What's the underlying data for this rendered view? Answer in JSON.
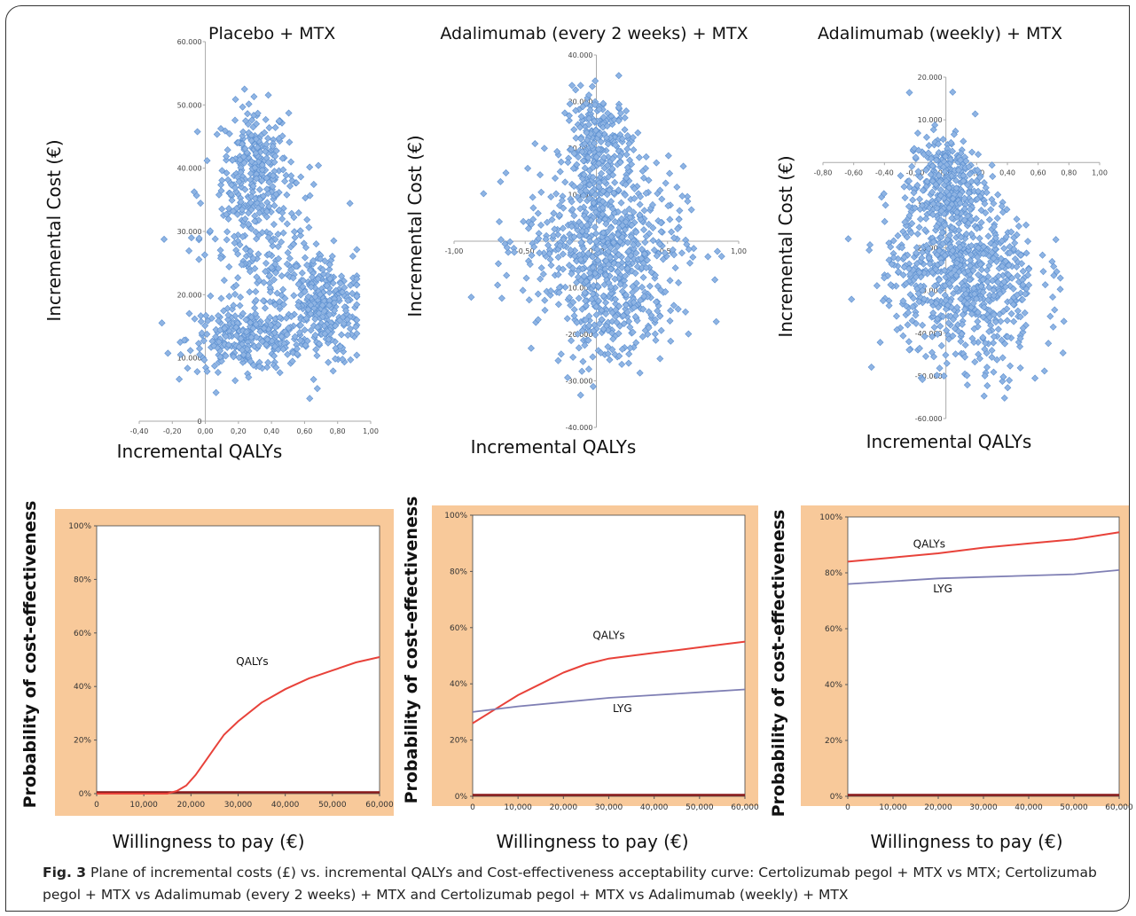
{
  "caption": {
    "label": "Fig. 3",
    "text": "Plane of incremental costs (£) vs. incremental QALYs and Cost-effectiveness acceptability curve: Certolizumab pegol + MTX vs MTX; Certolizumab pegol + MTX vs Adalimumab (every 2 weeks) + MTX and Certolizumab pegol + MTX vs Adalimumab (weekly) + MTX"
  },
  "colors": {
    "point": "#8fb4e3",
    "point_edge": "#5b8fd0",
    "qaly_line": "#e8423a",
    "lyg_line": "#7f7fb4",
    "panel_bg": "#f8c99a",
    "base_line": "#8b1a1a"
  },
  "chart_data": [
    {
      "type": "scatter",
      "title": "Placebo + MTX",
      "xlabel": "Incremental QALYs",
      "ylabel": "Incremental Cost (€)",
      "xlim": [
        -0.4,
        1.0
      ],
      "ylim": [
        0,
        60000
      ],
      "xticks": [
        "-0,40",
        "-0,20",
        "0,00",
        "0,20",
        "0,40",
        "0,60",
        "0,80",
        "1,00"
      ],
      "yticks": [
        "0",
        "10.000",
        "20.000",
        "30.000",
        "40.000",
        "50.000",
        "60.000"
      ],
      "points_summary": "approx. 1000 PSA simulations",
      "clusters": [
        {
          "cx": 0.3,
          "cy": 40000,
          "sx": 0.1,
          "sy": 5000,
          "n": 260
        },
        {
          "cx": 0.25,
          "cy": 13000,
          "sx": 0.18,
          "sy": 2500,
          "n": 260
        },
        {
          "cx": 0.7,
          "cy": 18000,
          "sx": 0.12,
          "sy": 4500,
          "n": 280
        },
        {
          "cx": 0.35,
          "cy": 26000,
          "sx": 0.2,
          "sy": 7000,
          "n": 200
        }
      ]
    },
    {
      "type": "scatter",
      "title": "Adalimumab (every 2 weeks) + MTX",
      "xlabel": "Incremental QALYs",
      "ylabel": "Incremental Cost (€)",
      "xlim": [
        -1.0,
        1.0
      ],
      "ylim": [
        -40000,
        40000
      ],
      "xticks": [
        "-1,00",
        "-0,50",
        "0,00",
        "0,50",
        "1,00"
      ],
      "yticks": [
        "-40.000",
        "-30.000",
        "-20.000",
        "-10.000",
        "0",
        "10.000",
        "20.000",
        "30.000",
        "40.000"
      ],
      "clusters": [
        {
          "cx": 0.02,
          "cy": 20000,
          "sx": 0.12,
          "sy": 6000,
          "n": 250
        },
        {
          "cx": 0.05,
          "cy": 0,
          "sx": 0.28,
          "sy": 8000,
          "n": 550
        },
        {
          "cx": 0.1,
          "cy": -15000,
          "sx": 0.2,
          "sy": 6000,
          "n": 200
        }
      ]
    },
    {
      "type": "scatter",
      "title": "Adalimumab (weekly) + MTX",
      "xlabel": "Incremental QALYs",
      "ylabel": "Incremental Cost (€)",
      "xlim": [
        -0.8,
        1.0
      ],
      "ylim": [
        -60000,
        20000
      ],
      "xticks": [
        "-0,80",
        "-0,60",
        "-0,40",
        "-0,20",
        "0,00",
        "0,20",
        "0,40",
        "0,60",
        "0,80",
        "1,00"
      ],
      "yticks": [
        "-60.000",
        "-50.000",
        "-40.000",
        "-30.000",
        "-20.000",
        "-10.000",
        "0",
        "10.000",
        "20.000"
      ],
      "clusters": [
        {
          "cx": 0.0,
          "cy": -5000,
          "sx": 0.12,
          "sy": 6000,
          "n": 300
        },
        {
          "cx": 0.1,
          "cy": -25000,
          "sx": 0.25,
          "sy": 8000,
          "n": 600
        },
        {
          "cx": 0.2,
          "cy": -40000,
          "sx": 0.25,
          "sy": 7000,
          "n": 120
        }
      ]
    },
    {
      "type": "line",
      "ylabel": "Probability of cost-effectiveness",
      "xlabel": "Willingness to pay (€)",
      "xlim": [
        0,
        60000
      ],
      "ylim": [
        0,
        1
      ],
      "xticks": [
        "0",
        "10,000",
        "20,000",
        "30,000",
        "40,000",
        "50,000",
        "60,000"
      ],
      "yticks": [
        "0%",
        "20%",
        "40%",
        "60%",
        "80%",
        "100%"
      ],
      "series": [
        {
          "name": "QALYs",
          "x": [
            0,
            15000,
            17000,
            19000,
            21000,
            23000,
            25000,
            27000,
            30000,
            35000,
            40000,
            45000,
            50000,
            55000,
            60000
          ],
          "values": [
            0,
            0,
            0.01,
            0.03,
            0.07,
            0.12,
            0.17,
            0.22,
            0.27,
            0.34,
            0.39,
            0.43,
            0.46,
            0.49,
            0.51
          ]
        }
      ]
    },
    {
      "type": "line",
      "ylabel": "Probability of cost-effectiveness",
      "xlabel": "Willingness to pay (€)",
      "xlim": [
        0,
        60000
      ],
      "ylim": [
        0,
        1
      ],
      "xticks": [
        "0",
        "10,000",
        "20,000",
        "30,000",
        "40,000",
        "50,000",
        "60,000"
      ],
      "yticks": [
        "0%",
        "20%",
        "40%",
        "60%",
        "80%",
        "100%"
      ],
      "series": [
        {
          "name": "QALYs",
          "x": [
            0,
            5000,
            10000,
            15000,
            20000,
            25000,
            30000,
            35000,
            40000,
            45000,
            50000,
            55000,
            60000
          ],
          "values": [
            0.26,
            0.31,
            0.36,
            0.4,
            0.44,
            0.47,
            0.49,
            0.5,
            0.51,
            0.52,
            0.53,
            0.54,
            0.55
          ]
        },
        {
          "name": "LYG",
          "x": [
            0,
            10000,
            20000,
            30000,
            40000,
            50000,
            60000
          ],
          "values": [
            0.3,
            0.32,
            0.335,
            0.35,
            0.36,
            0.37,
            0.38
          ]
        }
      ]
    },
    {
      "type": "line",
      "ylabel": "Probability of cost-effectiveness",
      "xlabel": "Willingness to pay (€)",
      "xlim": [
        0,
        60000
      ],
      "ylim": [
        0,
        1
      ],
      "xticks": [
        "0",
        "10,000",
        "20,000",
        "30,000",
        "40,000",
        "50,000",
        "60,000"
      ],
      "yticks": [
        "0%",
        "20%",
        "40%",
        "60%",
        "80%",
        "100%"
      ],
      "series": [
        {
          "name": "QALYs",
          "x": [
            0,
            10000,
            20000,
            30000,
            40000,
            50000,
            60000
          ],
          "values": [
            0.84,
            0.855,
            0.87,
            0.89,
            0.905,
            0.92,
            0.945
          ]
        },
        {
          "name": "LYG",
          "x": [
            0,
            10000,
            20000,
            30000,
            40000,
            50000,
            60000
          ],
          "values": [
            0.76,
            0.77,
            0.78,
            0.785,
            0.79,
            0.795,
            0.81
          ]
        }
      ]
    }
  ]
}
